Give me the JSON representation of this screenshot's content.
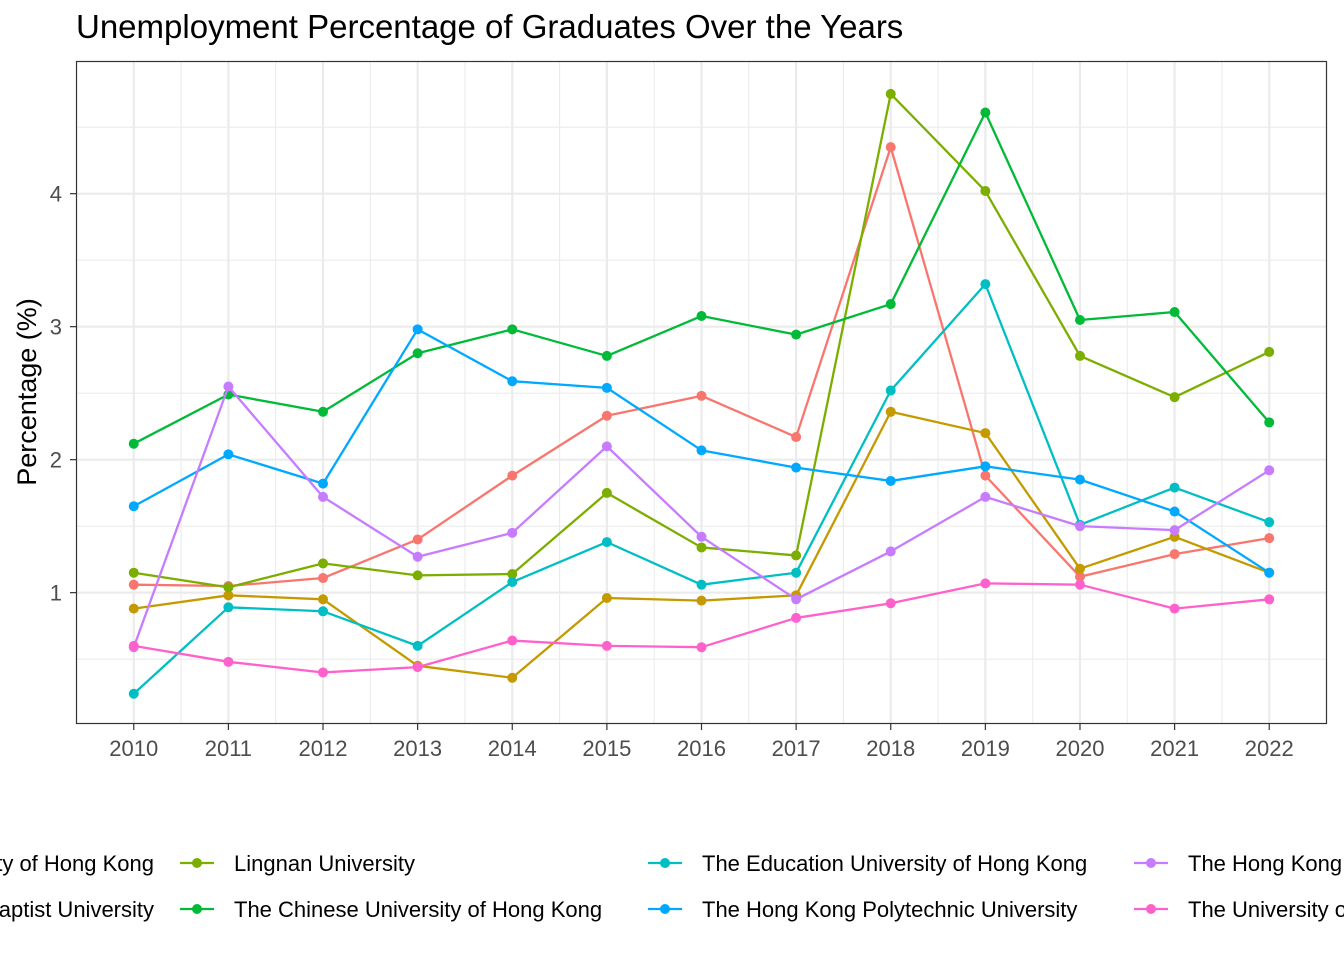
{
  "chart_data": {
    "type": "line",
    "title": "Unemployment Percentage of Graduates Over the Years",
    "xlabel": "",
    "ylabel": "Percentage (%)",
    "x": [
      2010,
      2011,
      2012,
      2013,
      2014,
      2015,
      2016,
      2017,
      2018,
      2019,
      2020,
      2021,
      2022
    ],
    "x_tick_labels": [
      "2010",
      "2011",
      "2012",
      "2013",
      "2014",
      "2015",
      "2016",
      "2017",
      "2018",
      "2019",
      "2020",
      "2021",
      "2022"
    ],
    "y_ticks": [
      1,
      2,
      3,
      4
    ],
    "y_tick_labels": [
      "1",
      "2",
      "3",
      "4"
    ],
    "xlim": [
      2009.4,
      2022.6
    ],
    "ylim": [
      0.02,
      4.99
    ],
    "grid": true,
    "legend_position": "bottom",
    "series": [
      {
        "name": "City University of Hong Kong",
        "color": "#F8766D",
        "values": [
          1.06,
          1.05,
          1.11,
          1.4,
          1.88,
          2.33,
          2.48,
          2.17,
          4.35,
          1.88,
          1.12,
          1.29,
          1.41
        ]
      },
      {
        "name": "Hong Kong Baptist University",
        "color": "#C49A00",
        "values": [
          0.88,
          0.98,
          0.95,
          0.45,
          0.36,
          0.96,
          0.94,
          0.98,
          2.36,
          2.2,
          1.18,
          1.42,
          1.15
        ]
      },
      {
        "name": "Lingnan University",
        "color": "#7CAE00",
        "values": [
          1.15,
          1.04,
          1.22,
          1.13,
          1.14,
          1.75,
          1.34,
          1.28,
          4.75,
          4.02,
          2.78,
          2.47,
          2.81
        ]
      },
      {
        "name": "The Chinese University of Hong Kong",
        "color": "#00BA38",
        "values": [
          2.12,
          2.49,
          2.36,
          2.8,
          2.98,
          2.78,
          3.08,
          2.94,
          3.17,
          4.61,
          3.05,
          3.11,
          2.28
        ]
      },
      {
        "name": "The Education University of Hong Kong",
        "color": "#00BFC4",
        "values": [
          0.24,
          0.89,
          0.86,
          0.6,
          1.08,
          1.38,
          1.06,
          1.15,
          2.52,
          3.32,
          1.51,
          1.79,
          1.53
        ]
      },
      {
        "name": "The Hong Kong Polytechnic University",
        "color": "#00A9FF",
        "values": [
          1.65,
          2.04,
          1.82,
          2.98,
          2.59,
          2.54,
          2.07,
          1.94,
          1.84,
          1.95,
          1.85,
          1.61,
          1.15
        ]
      },
      {
        "name": "The Hong Kong University of Science and Technology",
        "color": "#C77CFF",
        "values": [
          0.59,
          2.55,
          1.72,
          1.27,
          1.45,
          2.1,
          1.42,
          0.95,
          1.31,
          1.72,
          1.5,
          1.47,
          1.92
        ]
      },
      {
        "name": "The University of Hong Kong",
        "color": "#FF61CC",
        "values": [
          0.6,
          0.48,
          0.4,
          0.44,
          0.64,
          0.6,
          0.59,
          0.81,
          0.92,
          1.07,
          1.06,
          0.88,
          0.95
        ]
      }
    ]
  }
}
